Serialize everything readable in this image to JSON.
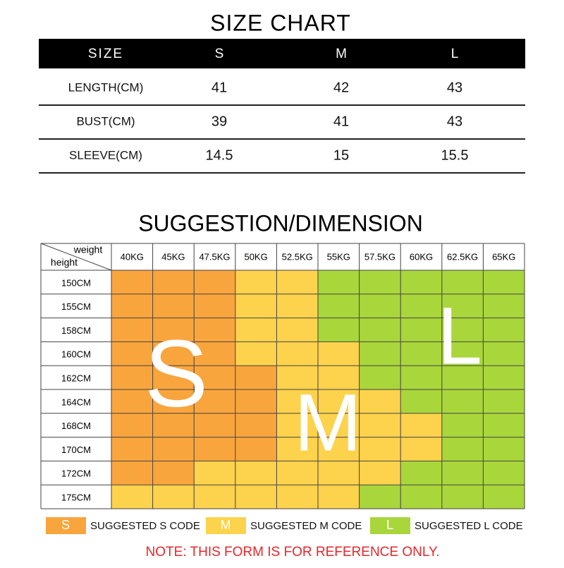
{
  "size_chart": {
    "title": "SIZE CHART",
    "header": [
      "SIZE",
      "S",
      "M",
      "L"
    ],
    "rows": [
      [
        "LENGTH(CM)",
        "41",
        "42",
        "43"
      ],
      [
        "BUST(CM)",
        "39",
        "41",
        "43"
      ],
      [
        "SLEEVE(CM)",
        "14.5",
        "15",
        "15.5"
      ]
    ]
  },
  "suggestion": {
    "title": "SUGGESTION/DIMENSION",
    "corner_top": "weight",
    "corner_bottom": "height",
    "weights": [
      "40KG",
      "45KG",
      "47.5KG",
      "50KG",
      "52.5KG",
      "55KG",
      "57.5KG",
      "60KG",
      "62.5KG",
      "65KG"
    ],
    "heights": [
      "150CM",
      "155CM",
      "158CM",
      "160CM",
      "162CM",
      "164CM",
      "168CM",
      "170CM",
      "172CM",
      "175CM"
    ],
    "grid": [
      [
        "S",
        "S",
        "S",
        "M",
        "M",
        "L",
        "L",
        "L",
        "L",
        "L"
      ],
      [
        "S",
        "S",
        "S",
        "M",
        "M",
        "L",
        "L",
        "L",
        "L",
        "L"
      ],
      [
        "S",
        "S",
        "S",
        "M",
        "M",
        "L",
        "L",
        "L",
        "L",
        "L"
      ],
      [
        "S",
        "S",
        "S",
        "M",
        "M",
        "M",
        "L",
        "L",
        "L",
        "L"
      ],
      [
        "S",
        "S",
        "S",
        "S",
        "M",
        "M",
        "L",
        "L",
        "L",
        "L"
      ],
      [
        "S",
        "S",
        "S",
        "S",
        "M",
        "M",
        "M",
        "L",
        "L",
        "L"
      ],
      [
        "S",
        "S",
        "S",
        "S",
        "M",
        "M",
        "M",
        "M",
        "L",
        "L"
      ],
      [
        "S",
        "S",
        "S",
        "S",
        "M",
        "M",
        "M",
        "M",
        "L",
        "L"
      ],
      [
        "S",
        "S",
        "M",
        "M",
        "M",
        "M",
        "M",
        "L",
        "L",
        "L"
      ],
      [
        "M",
        "M",
        "M",
        "M",
        "M",
        "M",
        "L",
        "L",
        "L",
        "L"
      ]
    ],
    "legend": [
      {
        "code": "S",
        "label": "SUGGESTED S CODE",
        "color": "#f9a53d"
      },
      {
        "code": "M",
        "label": "SUGGESTED M CODE",
        "color": "#fdd24c"
      },
      {
        "code": "L",
        "label": "SUGGESTED L CODE",
        "color": "#a9d63b"
      }
    ],
    "note": "NOTE: THIS FORM IS FOR REFERENCE ONLY."
  }
}
